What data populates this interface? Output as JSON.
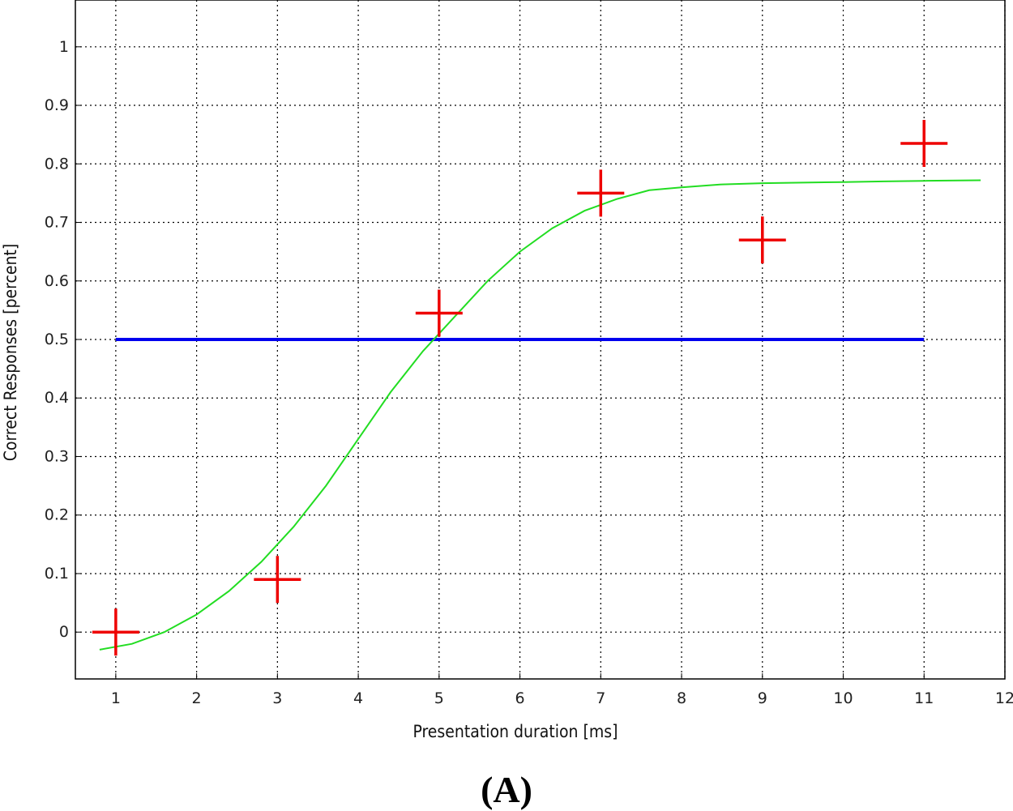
{
  "panel_label": "(A)",
  "colors": {
    "fit_curve": "#22dd22",
    "threshold_line": "#0000ee",
    "data_markers": "#ee0000",
    "grid": "#000000"
  },
  "chart_data": {
    "type": "scatter",
    "xlabel": "Presentation duration [ms]",
    "ylabel": "Correct Responses [percent]",
    "xlim": [
      0.5,
      12
    ],
    "ylim": [
      -0.08,
      1.08
    ],
    "x_ticks": [
      1,
      2,
      3,
      4,
      5,
      6,
      7,
      8,
      9,
      10,
      11,
      12
    ],
    "y_ticks": [
      0,
      0.1,
      0.2,
      0.3,
      0.4,
      0.5,
      0.6,
      0.7,
      0.8,
      0.9,
      1
    ],
    "y_tick_labels": [
      "0",
      "0.1",
      "0.2",
      "0.3",
      "0.4",
      "0.5",
      "0.6",
      "0.7",
      "0.8",
      "0.9",
      "1"
    ],
    "grid": true,
    "series": [
      {
        "type": "scatter",
        "marker": "plus",
        "points": [
          {
            "x": 1,
            "y": 0.0
          },
          {
            "x": 3,
            "y": 0.09
          },
          {
            "x": 5,
            "y": 0.545
          },
          {
            "x": 7,
            "y": 0.75
          },
          {
            "x": 9,
            "y": 0.67
          },
          {
            "x": 11,
            "y": 0.835
          }
        ]
      },
      {
        "type": "line",
        "style": "fitted sigmoid",
        "x": [
          0.8,
          1.2,
          1.6,
          2.0,
          2.4,
          2.8,
          3.2,
          3.6,
          4.0,
          4.4,
          4.8,
          5.2,
          5.6,
          6.0,
          6.4,
          6.8,
          7.2,
          7.6,
          8.0,
          8.5,
          9.0,
          9.5,
          10.0,
          10.5,
          11.0,
          11.7
        ],
        "y": [
          -0.03,
          -0.02,
          0.0,
          0.03,
          0.07,
          0.12,
          0.18,
          0.25,
          0.33,
          0.41,
          0.48,
          0.54,
          0.6,
          0.65,
          0.69,
          0.72,
          0.74,
          0.755,
          0.76,
          0.765,
          0.767,
          0.768,
          0.769,
          0.77,
          0.771,
          0.772
        ]
      },
      {
        "type": "line",
        "style": "threshold",
        "x": [
          1,
          11
        ],
        "y": [
          0.5,
          0.5
        ]
      }
    ]
  }
}
